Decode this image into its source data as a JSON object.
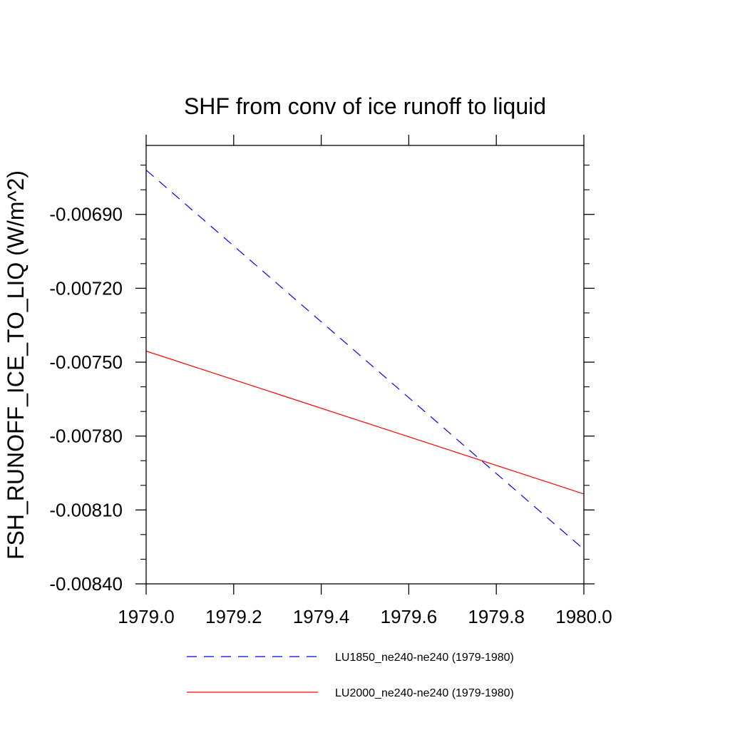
{
  "chart_data": {
    "type": "line",
    "title": "SHF from conv of ice runoff to liquid",
    "ylabel": "FSH_RUNOFF_ICE_TO_LIQ  (W/m^2)",
    "xlabel": "",
    "xlim": [
      1979.0,
      1980.0
    ],
    "ylim": [
      -0.0084,
      -0.00662
    ],
    "x_ticks": [
      1979.0,
      1979.2,
      1979.4,
      1979.6,
      1979.8,
      1980.0
    ],
    "x_tick_labels": [
      "1979.0",
      "1979.2",
      "1979.4",
      "1979.6",
      "1979.8",
      "1980.0"
    ],
    "y_ticks": [
      -0.0084,
      -0.0081,
      -0.0078,
      -0.0075,
      -0.0072,
      -0.0069
    ],
    "y_tick_labels": [
      "-0.00840",
      "-0.00810",
      "-0.00780",
      "-0.00750",
      "-0.00720",
      "-0.00690"
    ],
    "grid": false,
    "legend_position": "bottom",
    "series": [
      {
        "name": "LU1850_ne240-ne240 (1979-1980)",
        "color": "#0000ff",
        "dash": "dashed",
        "x": [
          1979.0,
          1980.0
        ],
        "y": [
          -0.00672,
          -0.00826
        ]
      },
      {
        "name": "LU2000_ne240-ne240 (1979-1980)",
        "color": "#ff0000",
        "dash": "solid",
        "x": [
          1979.0,
          1980.0
        ],
        "y": [
          -0.007455,
          -0.008035
        ]
      }
    ]
  }
}
